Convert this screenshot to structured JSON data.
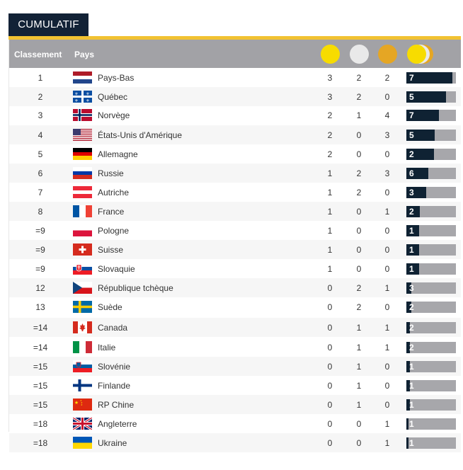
{
  "tab_title": "CUMULATIF",
  "header": {
    "rank": "Classement",
    "country": "Pays"
  },
  "colors": {
    "gold": "#f7dc00",
    "silver": "#e9e9e9",
    "bronze": "#e5a624",
    "bar_fill": "#0f2233",
    "bar_bg": "#a7a7ab",
    "tab": "#122236",
    "rule": "#f1c232"
  },
  "max_total": 7,
  "rows": [
    {
      "rank": "1",
      "country": "Pays-Bas",
      "flag": "netherlands",
      "gold": "3",
      "silver": "2",
      "bronze": "2",
      "total": "7",
      "fill": 0.93
    },
    {
      "rank": "2",
      "country": "Québec",
      "flag": "quebec",
      "gold": "3",
      "silver": "2",
      "bronze": "0",
      "total": "5",
      "fill": 0.8
    },
    {
      "rank": "3",
      "country": "Norvège",
      "flag": "norway",
      "gold": "2",
      "silver": "1",
      "bronze": "4",
      "total": "7",
      "fill": 0.65
    },
    {
      "rank": "4",
      "country": "États-Unis d'Amérique",
      "flag": "usa",
      "gold": "2",
      "silver": "0",
      "bronze": "3",
      "total": "5",
      "fill": 0.57
    },
    {
      "rank": "5",
      "country": "Allemagne",
      "flag": "germany",
      "gold": "2",
      "silver": "0",
      "bronze": "0",
      "total": "2",
      "fill": 0.55
    },
    {
      "rank": "6",
      "country": "Russie",
      "flag": "russia",
      "gold": "1",
      "silver": "2",
      "bronze": "3",
      "total": "6",
      "fill": 0.44
    },
    {
      "rank": "7",
      "country": "Autriche",
      "flag": "austria",
      "gold": "1",
      "silver": "2",
      "bronze": "0",
      "total": "3",
      "fill": 0.4
    },
    {
      "rank": "8",
      "country": "France",
      "flag": "france",
      "gold": "1",
      "silver": "0",
      "bronze": "1",
      "total": "2",
      "fill": 0.27
    },
    {
      "rank": "=9",
      "country": "Pologne",
      "flag": "poland",
      "gold": "1",
      "silver": "0",
      "bronze": "0",
      "total": "1",
      "fill": 0.25
    },
    {
      "rank": "=9",
      "country": "Suisse",
      "flag": "switzerland",
      "gold": "1",
      "silver": "0",
      "bronze": "0",
      "total": "1",
      "fill": 0.25
    },
    {
      "rank": "=9",
      "country": "Slovaquie",
      "flag": "slovakia",
      "gold": "1",
      "silver": "0",
      "bronze": "0",
      "total": "1",
      "fill": 0.25
    },
    {
      "rank": "12",
      "country": "République tchèque",
      "flag": "czech",
      "gold": "0",
      "silver": "2",
      "bronze": "1",
      "total": "3",
      "fill": 0.1
    },
    {
      "rank": "13",
      "country": "Suède",
      "flag": "sweden",
      "gold": "0",
      "silver": "2",
      "bronze": "0",
      "total": "2",
      "fill": 0.1
    },
    {
      "rank": "=14",
      "country": "Canada",
      "flag": "canada",
      "gold": "0",
      "silver": "1",
      "bronze": "1",
      "total": "2",
      "fill": 0.07
    },
    {
      "rank": "=14",
      "country": "Italie",
      "flag": "italy",
      "gold": "0",
      "silver": "1",
      "bronze": "1",
      "total": "2",
      "fill": 0.07
    },
    {
      "rank": "=15",
      "country": "Slovénie",
      "flag": "slovenia",
      "gold": "0",
      "silver": "1",
      "bronze": "0",
      "total": "1",
      "fill": 0.07
    },
    {
      "rank": "=15",
      "country": "Finlande",
      "flag": "finland",
      "gold": "0",
      "silver": "1",
      "bronze": "0",
      "total": "1",
      "fill": 0.07
    },
    {
      "rank": "=15",
      "country": "RP Chine",
      "flag": "china",
      "gold": "0",
      "silver": "1",
      "bronze": "0",
      "total": "1",
      "fill": 0.07
    },
    {
      "rank": "=18",
      "country": "Angleterre",
      "flag": "uk",
      "gold": "0",
      "silver": "0",
      "bronze": "1",
      "total": "1",
      "fill": 0.04
    },
    {
      "rank": "=18",
      "country": "Ukraine",
      "flag": "ukraine",
      "gold": "0",
      "silver": "0",
      "bronze": "1",
      "total": "1",
      "fill": 0.04
    }
  ]
}
